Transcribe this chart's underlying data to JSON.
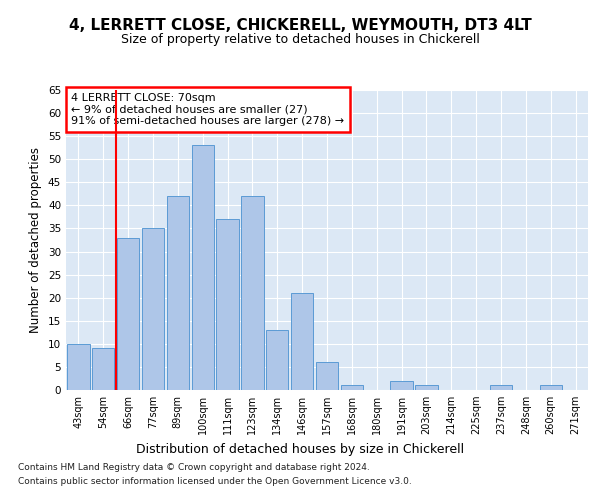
{
  "title1": "4, LERRETT CLOSE, CHICKERELL, WEYMOUTH, DT3 4LT",
  "title2": "Size of property relative to detached houses in Chickerell",
  "xlabel": "Distribution of detached houses by size in Chickerell",
  "ylabel": "Number of detached properties",
  "bar_labels": [
    "43sqm",
    "54sqm",
    "66sqm",
    "77sqm",
    "89sqm",
    "100sqm",
    "111sqm",
    "123sqm",
    "134sqm",
    "146sqm",
    "157sqm",
    "168sqm",
    "180sqm",
    "191sqm",
    "203sqm",
    "214sqm",
    "225sqm",
    "237sqm",
    "248sqm",
    "260sqm",
    "271sqm"
  ],
  "bar_values": [
    10,
    9,
    33,
    35,
    42,
    53,
    37,
    42,
    13,
    21,
    6,
    1,
    0,
    2,
    1,
    0,
    0,
    1,
    0,
    1,
    0
  ],
  "bar_color": "#aec6e8",
  "bar_edge_color": "#5b9bd5",
  "red_line_x": 1.5,
  "annotation_text": "4 LERRETT CLOSE: 70sqm\n← 9% of detached houses are smaller (27)\n91% of semi-detached houses are larger (278) →",
  "annotation_box_color": "white",
  "annotation_box_edge": "red",
  "footer1": "Contains HM Land Registry data © Crown copyright and database right 2024.",
  "footer2": "Contains public sector information licensed under the Open Government Licence v3.0.",
  "ylim": [
    0,
    65
  ],
  "yticks": [
    0,
    5,
    10,
    15,
    20,
    25,
    30,
    35,
    40,
    45,
    50,
    55,
    60,
    65
  ],
  "background_color": "#dce8f5",
  "grid_color": "white",
  "title1_fontsize": 11,
  "title2_fontsize": 9
}
